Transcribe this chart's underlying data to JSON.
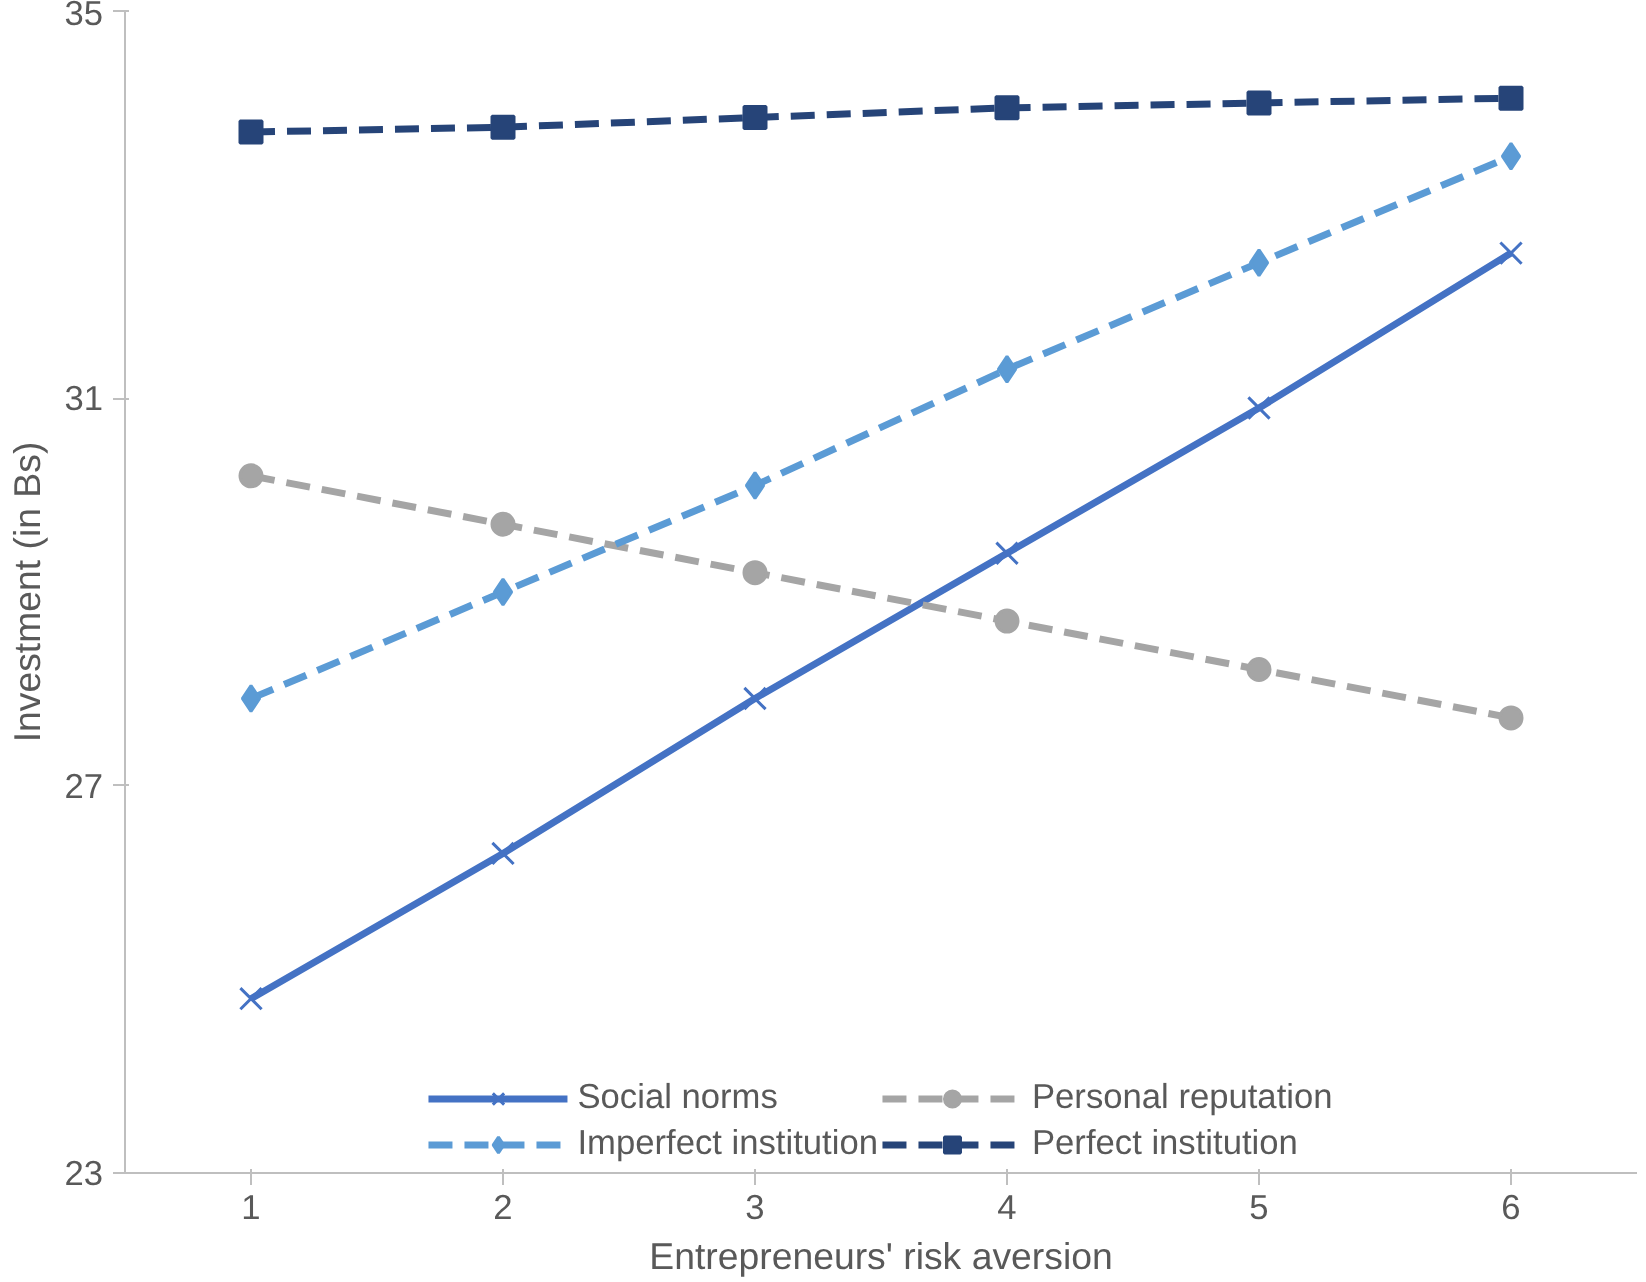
{
  "chart_data": {
    "type": "line",
    "xlabel": "Entrepreneurs' risk aversion",
    "ylabel": "Investment (in Bs)",
    "categories": [
      "1",
      "2",
      "3",
      "4",
      "5",
      "6"
    ],
    "series": [
      {
        "name": "Social norms",
        "color": "#4472c4",
        "marker": "cross",
        "line_style": "solid",
        "values": [
          24.8,
          26.3,
          27.9,
          29.4,
          30.9,
          32.5
        ]
      },
      {
        "name": "Personal reputation",
        "color": "#a5a5a5",
        "marker": "circle",
        "line_style": "dashed",
        "values": [
          30.2,
          29.7,
          29.2,
          28.7,
          28.2,
          27.7
        ]
      },
      {
        "name": "Imperfect institution",
        "color": "#5b9bd5",
        "marker": "diamond",
        "line_style": "dashed",
        "values": [
          27.9,
          29.0,
          30.1,
          31.3,
          32.4,
          33.5
        ]
      },
      {
        "name": "Perfect institution",
        "color": "#264478",
        "marker": "square",
        "line_style": "dashed",
        "values": [
          33.75,
          33.8,
          33.9,
          34.0,
          34.05,
          34.1
        ]
      }
    ],
    "ylim": [
      23,
      35
    ],
    "yticks": [
      23,
      27,
      31,
      35
    ],
    "grid": false,
    "legend": "bottom"
  }
}
